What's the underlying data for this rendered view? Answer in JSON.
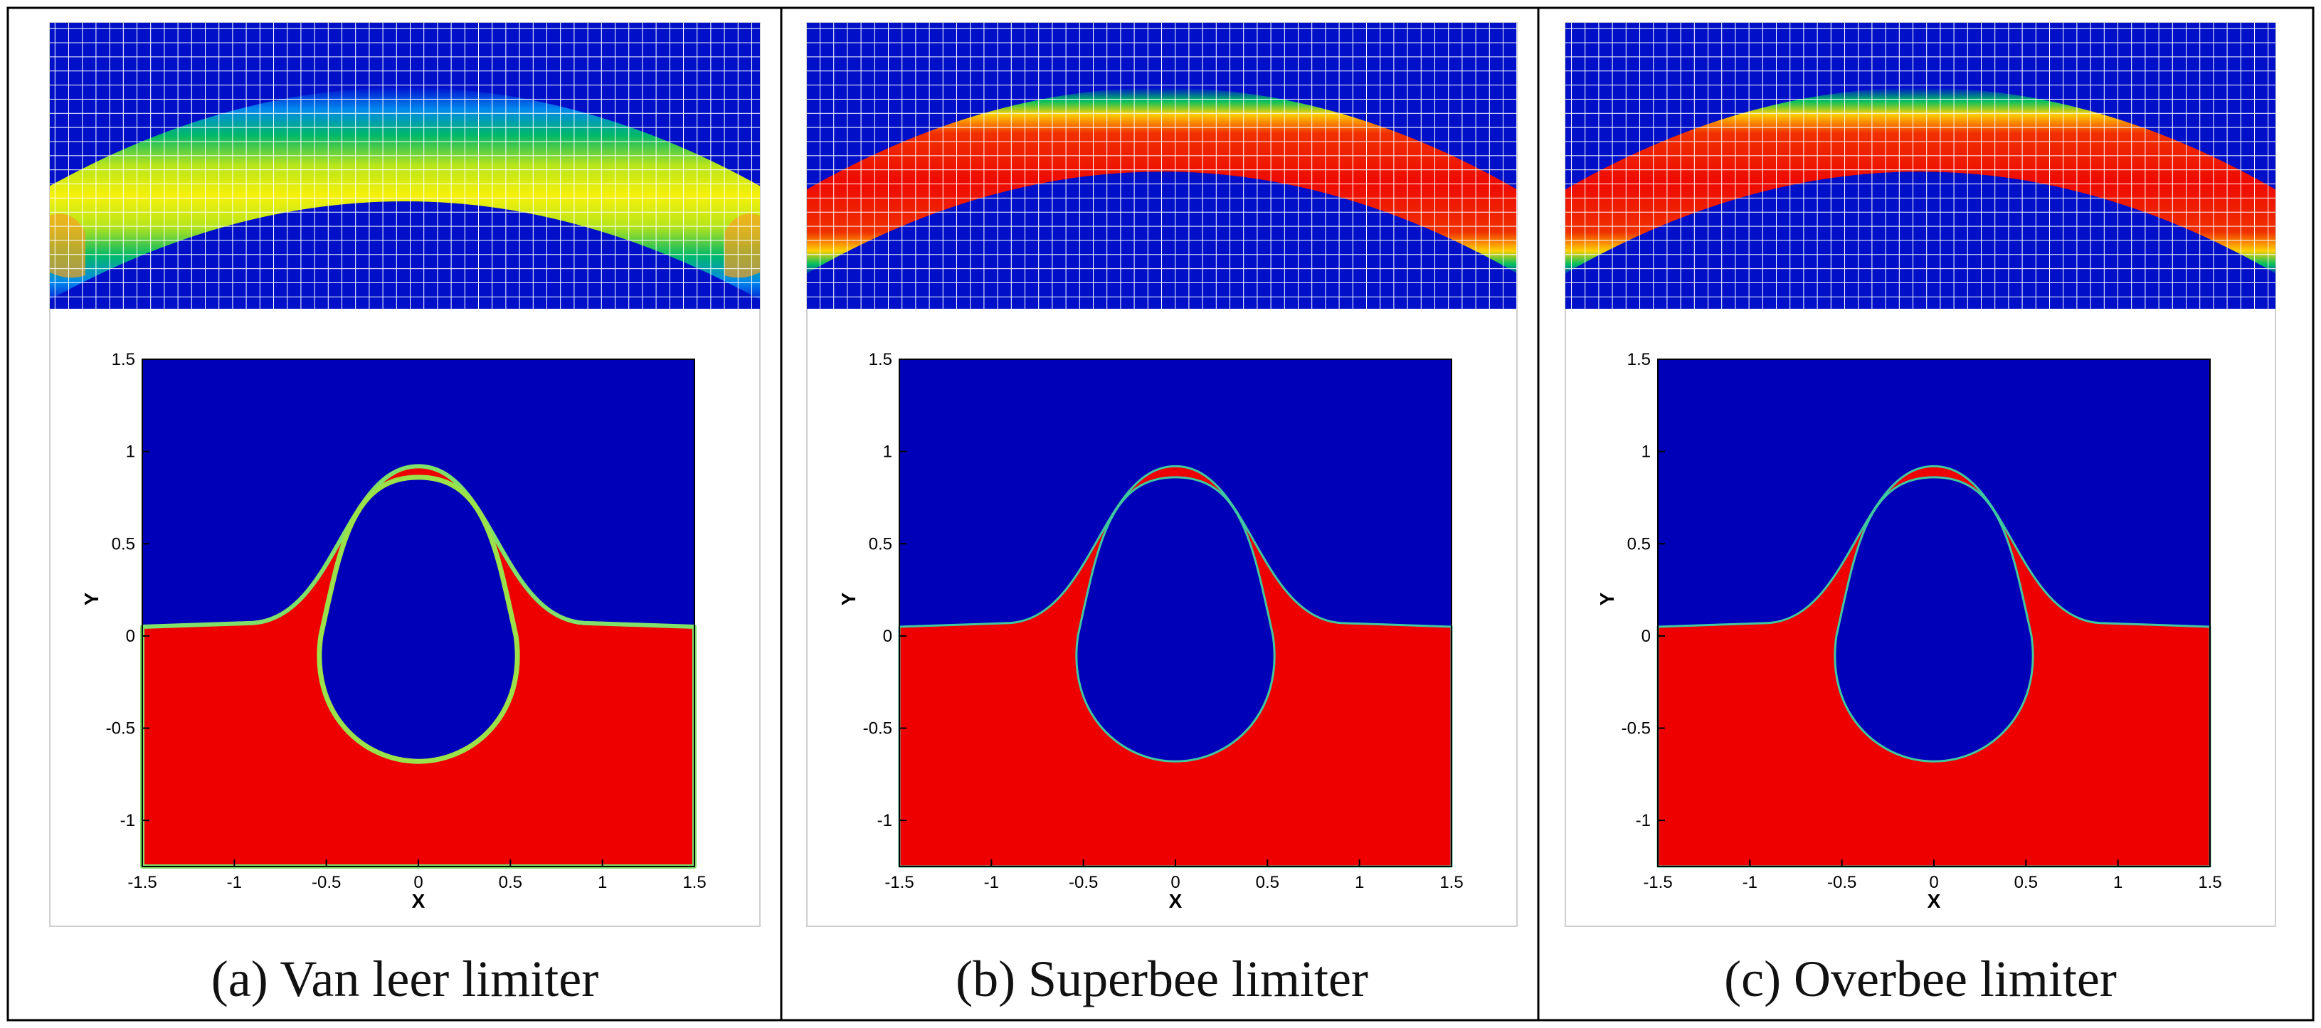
{
  "figure": {
    "grid_cells_x": 48,
    "grid_cells_y": 20,
    "panels": [
      {
        "id": "a",
        "caption": "(a) Van leer limiter",
        "interface": "diffuse",
        "band_peak_color": "#f6f10a"
      },
      {
        "id": "b",
        "caption": "(b) Superbee limiter",
        "interface": "sharp",
        "band_peak_color": "#ee0a00"
      },
      {
        "id": "c",
        "caption": "(c) Overbee limiter",
        "interface": "sharp",
        "band_peak_color": "#ee0a00"
      }
    ]
  },
  "chart_data": {
    "type": "heatmap",
    "field": "volume fraction contour, rising bubble",
    "xlabel": "X",
    "ylabel": "Y",
    "xlim": [
      -1.5,
      1.5
    ],
    "ylim": [
      -1.25,
      1.5
    ],
    "xticks": [
      "-1.5",
      "-1",
      "-0.5",
      "0",
      "0.5",
      "1",
      "1.5"
    ],
    "yticks": [
      "-1",
      "-0.5",
      "0",
      "0.5",
      "1",
      "1.5"
    ],
    "colors": {
      "liquid": "#ee0000",
      "gas": "#0000b8"
    },
    "free_surface_y": 0.05,
    "bubble": {
      "top_y": 0.9,
      "bottom_y": -0.68,
      "max_halfwidth": 0.53
    }
  }
}
